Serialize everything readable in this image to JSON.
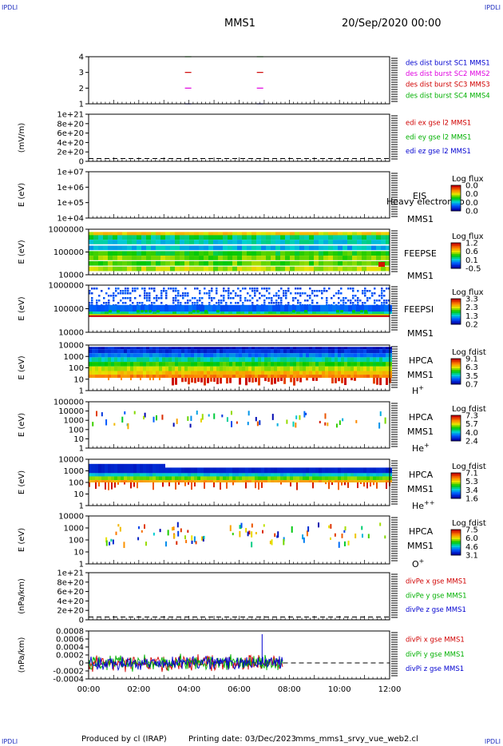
{
  "corners": {
    "tl": "IPDLI",
    "tr": "IPDLI",
    "bl": "IPDLI",
    "br": "IPDLI"
  },
  "header": {
    "spacecraft": "MMS1",
    "date": "20/Sep/2020 00:00"
  },
  "footer": {
    "produced_by": "Produced by cl (IRAP)",
    "printing_date": "Printing date: 03/Dec/2023",
    "filename": "mms_mms1_srvy_vue_web2.cl"
  },
  "time_axis": {
    "ticks": [
      "00:00",
      "02:00",
      "04:00",
      "06:00",
      "08:00",
      "10:00",
      "12:00"
    ]
  },
  "colors": {
    "red": "#d00000",
    "green": "#00b000",
    "blue": "#0000d0",
    "magenta": "#e000e0",
    "darkblue": "#000080",
    "corner": "#2030c0"
  },
  "chart_data": [
    {
      "id": "burst",
      "type": "scatter",
      "yticks": [
        "4",
        "3",
        "2",
        "1"
      ],
      "legend": [
        {
          "label": "des dist burst SC1 MMS1",
          "color": "#0000d0"
        },
        {
          "label": "des dist burst SC2 MMS2",
          "color": "#e000e0"
        },
        {
          "label": "des dist burst SC3 MMS3",
          "color": "#d00000"
        },
        {
          "label": "des dist burst SC4 MMS4",
          "color": "#00b000"
        }
      ],
      "series": [
        {
          "y": 4,
          "x": [
            "03:58",
            "06:50"
          ],
          "color": "#00b000"
        },
        {
          "y": 3,
          "x": [
            "03:58",
            "06:50"
          ],
          "color": "#d00000"
        },
        {
          "y": 2,
          "x": [
            "03:58",
            "06:50"
          ],
          "color": "#e000e0"
        },
        {
          "y": 1,
          "x": [
            "03:58",
            "06:50"
          ],
          "color": "#0000d0"
        }
      ]
    },
    {
      "id": "edi",
      "type": "line",
      "ylabel": "(mV/m)",
      "yticks": [
        "1e+21",
        "8e+20",
        "6e+20",
        "4e+20",
        "2e+20",
        "0"
      ],
      "legend": [
        {
          "label": "edi ex gse l2 MMS1",
          "color": "#d00000"
        },
        {
          "label": "edi ey gse l2 MMS1",
          "color": "#00b000"
        },
        {
          "label": "edi ez gse l2 MMS1",
          "color": "#0000d0"
        }
      ],
      "zero_line": true
    },
    {
      "id": "eis",
      "type": "heatmap",
      "ylabel": "E (eV)",
      "yticks": [
        "1e+07",
        "1e+06",
        "1e+05",
        "1e+04"
      ],
      "labels": [
        "EIS",
        "MMS1"
      ],
      "overlay": "Heavy electron to",
      "colorbar": {
        "title": "Log flux",
        "ticks": [
          "0.0",
          "0.0",
          "0.0",
          "0.0"
        ]
      }
    },
    {
      "id": "feepse",
      "type": "heatmap",
      "ylabel": "E (eV)",
      "yticks": [
        "1000000",
        "100000",
        "10000"
      ],
      "labels": [
        "FEEPSE",
        "MMS1"
      ],
      "colorbar": {
        "title": "Log flux",
        "ticks": [
          "1.2",
          "0.6",
          "0.1",
          "-0.5"
        ]
      }
    },
    {
      "id": "feepsi",
      "type": "heatmap",
      "ylabel": "E (eV)",
      "yticks": [
        "1000000",
        "100000",
        "10000"
      ],
      "labels": [
        "FEEPSI",
        "MMS1"
      ],
      "colorbar": {
        "title": "Log flux",
        "ticks": [
          "3.3",
          "2.3",
          "1.3",
          "0.2"
        ]
      }
    },
    {
      "id": "hpca_h",
      "type": "heatmap",
      "ylabel": "E (eV)",
      "yticks": [
        "10000",
        "1000",
        "100",
        "10",
        "1"
      ],
      "labels": [
        "HPCA",
        "MMS1"
      ],
      "species": "H",
      "species_sup": "+",
      "colorbar": {
        "title": "Log fdist",
        "ticks": [
          "9.1",
          "6.3",
          "3.5",
          "0.7"
        ]
      }
    },
    {
      "id": "hpca_he1",
      "type": "heatmap",
      "ylabel": "E (eV)",
      "yticks": [
        "100000",
        "10000",
        "1000",
        "100",
        "10",
        "1"
      ],
      "labels": [
        "HPCA",
        "MMS1"
      ],
      "species": "He",
      "species_sup": "+",
      "colorbar": {
        "title": "Log fdist",
        "ticks": [
          "7.3",
          "5.7",
          "4.0",
          "2.4"
        ]
      }
    },
    {
      "id": "hpca_he2",
      "type": "heatmap",
      "ylabel": "E (eV)",
      "yticks": [
        "10000",
        "1000",
        "100",
        "10",
        "1"
      ],
      "labels": [
        "HPCA",
        "MMS1"
      ],
      "species": "He",
      "species_sup": "++",
      "colorbar": {
        "title": "Log fdist",
        "ticks": [
          "7.1",
          "5.3",
          "3.4",
          "1.6"
        ]
      }
    },
    {
      "id": "hpca_o",
      "type": "heatmap",
      "ylabel": "E (eV)",
      "yticks": [
        "10000",
        "1000",
        "100",
        "10",
        "1"
      ],
      "labels": [
        "HPCA",
        "MMS1"
      ],
      "species": "O",
      "species_sup": "+",
      "colorbar": {
        "title": "Log fdist",
        "ticks": [
          "7.5",
          "6.0",
          "4.6",
          "3.1"
        ]
      }
    },
    {
      "id": "divpe",
      "type": "line",
      "ylabel": "(nPa/km)",
      "yticks": [
        "1e+21",
        "8e+20",
        "6e+20",
        "4e+20",
        "2e+20",
        "0"
      ],
      "legend": [
        {
          "label": "divPe x gse MMS1",
          "color": "#d00000"
        },
        {
          "label": "divPe y gse MMS1",
          "color": "#00b000"
        },
        {
          "label": "divPe z gse MMS1",
          "color": "#0000d0"
        }
      ],
      "zero_line": true
    },
    {
      "id": "divpi",
      "type": "line",
      "ylabel": "(nPa/km)",
      "yticks": [
        "0.0008",
        "0.0006",
        "0.0004",
        "0.0002",
        "0",
        "-0.0002",
        "-0.0004"
      ],
      "legend": [
        {
          "label": "divPi x gse MMS1",
          "color": "#d00000"
        },
        {
          "label": "divPi y gse MMS1",
          "color": "#00b000"
        },
        {
          "label": "divPi z gse MMS1",
          "color": "#0000d0"
        }
      ],
      "data_end": "07:45",
      "zero_line": true
    }
  ]
}
